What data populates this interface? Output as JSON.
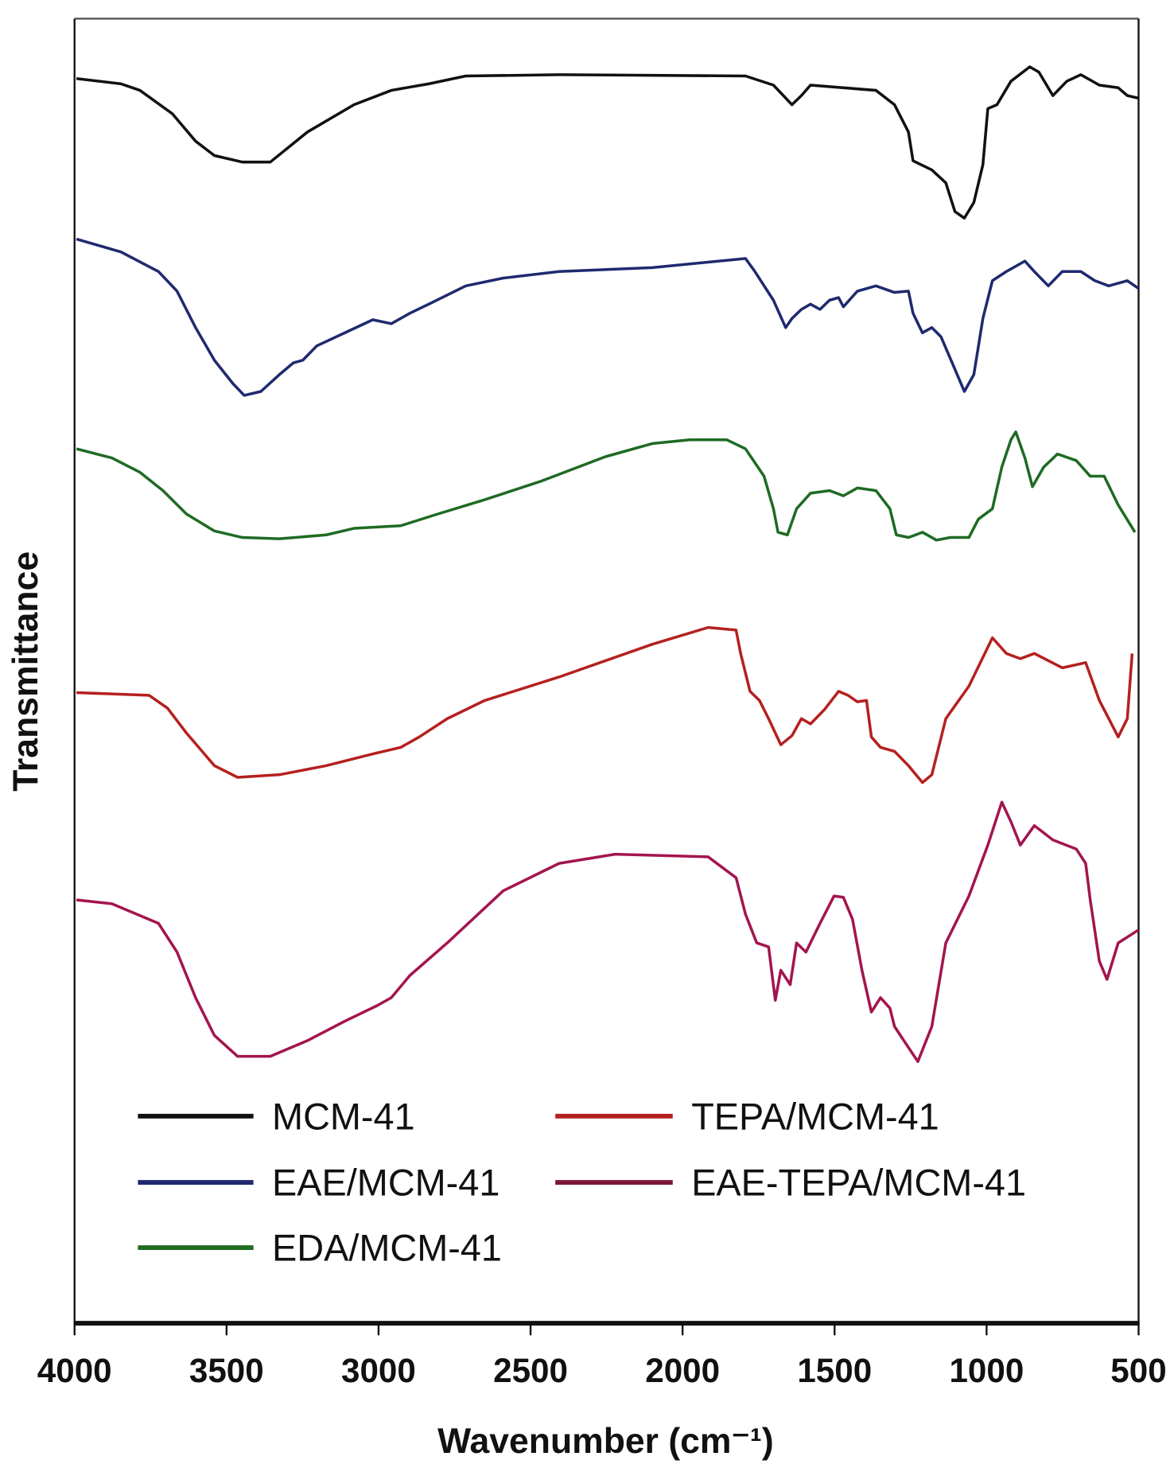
{
  "chart_data": {
    "type": "line",
    "title": "",
    "xlabel": "Wavenumber (cm⁻¹)",
    "ylabel": "Transmittance",
    "xlim": [
      4000,
      500
    ],
    "ylim": [
      0,
      100
    ],
    "y_units": "arbitrary (stacked, offset)",
    "xticks": [
      "4000",
      "3500",
      "3000",
      "2500",
      "2000",
      "1500",
      "1000",
      "500"
    ],
    "grid": false,
    "legend_position": "bottom-left",
    "series": [
      {
        "name": "MCM-41",
        "color": "#111111",
        "points": [
          [
            3994,
            95.4
          ],
          [
            3847,
            95
          ],
          [
            3785,
            94.5
          ],
          [
            3678,
            92.7
          ],
          [
            3602,
            90.6
          ],
          [
            3540,
            89.5
          ],
          [
            3448,
            89
          ],
          [
            3356,
            89
          ],
          [
            3234,
            91.3
          ],
          [
            3081,
            93.4
          ],
          [
            2958,
            94.5
          ],
          [
            2835,
            95
          ],
          [
            2713,
            95.6
          ],
          [
            2406,
            95.7
          ],
          [
            1793,
            95.6
          ],
          [
            1701,
            94.9
          ],
          [
            1640,
            93.4
          ],
          [
            1609,
            94.1
          ],
          [
            1579,
            94.9
          ],
          [
            1364,
            94.5
          ],
          [
            1303,
            93.4
          ],
          [
            1257,
            91.3
          ],
          [
            1242,
            89.1
          ],
          [
            1180,
            88.4
          ],
          [
            1134,
            87.4
          ],
          [
            1104,
            85.2
          ],
          [
            1073,
            84.7
          ],
          [
            1042,
            85.9
          ],
          [
            1012,
            88.8
          ],
          [
            996,
            93.1
          ],
          [
            966,
            93.4
          ],
          [
            920,
            95.2
          ],
          [
            858,
            96.3
          ],
          [
            828,
            95.9
          ],
          [
            782,
            94.1
          ],
          [
            736,
            95.2
          ],
          [
            690,
            95.7
          ],
          [
            629,
            94.9
          ],
          [
            567,
            94.7
          ],
          [
            537,
            94.1
          ],
          [
            500,
            93.9
          ]
        ]
      },
      {
        "name": "EAE/MCM-41",
        "color": "#1f2a6e",
        "points": [
          [
            3994,
            83.1
          ],
          [
            3847,
            82.1
          ],
          [
            3724,
            80.6
          ],
          [
            3663,
            79.1
          ],
          [
            3602,
            76.3
          ],
          [
            3540,
            73.8
          ],
          [
            3479,
            72
          ],
          [
            3442,
            71.1
          ],
          [
            3387,
            71.4
          ],
          [
            3326,
            72.7
          ],
          [
            3280,
            73.6
          ],
          [
            3249,
            73.8
          ],
          [
            3203,
            74.9
          ],
          [
            3111,
            75.9
          ],
          [
            3019,
            76.9
          ],
          [
            2958,
            76.6
          ],
          [
            2897,
            77.4
          ],
          [
            2835,
            78.1
          ],
          [
            2713,
            79.5
          ],
          [
            2590,
            80.1
          ],
          [
            2406,
            80.6
          ],
          [
            2100,
            80.9
          ],
          [
            1793,
            81.6
          ],
          [
            1762,
            80.6
          ],
          [
            1701,
            78.4
          ],
          [
            1661,
            76.3
          ],
          [
            1640,
            77
          ],
          [
            1609,
            77.7
          ],
          [
            1579,
            78.1
          ],
          [
            1548,
            77.7
          ],
          [
            1517,
            78.4
          ],
          [
            1487,
            78.6
          ],
          [
            1471,
            77.9
          ],
          [
            1425,
            79.1
          ],
          [
            1364,
            79.5
          ],
          [
            1303,
            79
          ],
          [
            1257,
            79.1
          ],
          [
            1242,
            77.4
          ],
          [
            1211,
            75.9
          ],
          [
            1180,
            76.3
          ],
          [
            1150,
            75.6
          ],
          [
            1104,
            73.1
          ],
          [
            1073,
            71.4
          ],
          [
            1042,
            72.7
          ],
          [
            1012,
            77
          ],
          [
            981,
            79.9
          ],
          [
            935,
            80.6
          ],
          [
            874,
            81.4
          ],
          [
            843,
            80.6
          ],
          [
            797,
            79.5
          ],
          [
            751,
            80.6
          ],
          [
            690,
            80.6
          ],
          [
            644,
            79.9
          ],
          [
            598,
            79.5
          ],
          [
            537,
            79.9
          ],
          [
            500,
            79.3
          ]
        ]
      },
      {
        "name": "EDA/MCM-41",
        "color": "#1e6b23",
        "points": [
          [
            3994,
            67
          ],
          [
            3877,
            66.3
          ],
          [
            3785,
            65.2
          ],
          [
            3709,
            63.8
          ],
          [
            3632,
            62
          ],
          [
            3540,
            60.7
          ],
          [
            3448,
            60.2
          ],
          [
            3326,
            60.1
          ],
          [
            3172,
            60.4
          ],
          [
            3081,
            60.9
          ],
          [
            2927,
            61.1
          ],
          [
            2805,
            62
          ],
          [
            2651,
            63.1
          ],
          [
            2468,
            64.5
          ],
          [
            2253,
            66.4
          ],
          [
            2100,
            67.4
          ],
          [
            1977,
            67.7
          ],
          [
            1855,
            67.7
          ],
          [
            1793,
            67
          ],
          [
            1732,
            64.9
          ],
          [
            1701,
            62.4
          ],
          [
            1686,
            60.6
          ],
          [
            1655,
            60.4
          ],
          [
            1625,
            62.4
          ],
          [
            1579,
            63.6
          ],
          [
            1517,
            63.8
          ],
          [
            1471,
            63.4
          ],
          [
            1425,
            64
          ],
          [
            1364,
            63.8
          ],
          [
            1318,
            62.4
          ],
          [
            1297,
            60.4
          ],
          [
            1257,
            60.2
          ],
          [
            1211,
            60.6
          ],
          [
            1165,
            60
          ],
          [
            1119,
            60.2
          ],
          [
            1058,
            60.2
          ],
          [
            1027,
            61.6
          ],
          [
            981,
            62.4
          ],
          [
            950,
            65.6
          ],
          [
            920,
            67.7
          ],
          [
            904,
            68.3
          ],
          [
            874,
            66.3
          ],
          [
            849,
            64.1
          ],
          [
            812,
            65.6
          ],
          [
            767,
            66.6
          ],
          [
            705,
            66.1
          ],
          [
            659,
            64.9
          ],
          [
            613,
            64.9
          ],
          [
            567,
            62.7
          ],
          [
            512,
            60.6
          ]
        ]
      },
      {
        "name": "TEPA/MCM-41",
        "color": "#b52020",
        "points": [
          [
            3994,
            48.3
          ],
          [
            3755,
            48.1
          ],
          [
            3694,
            47.1
          ],
          [
            3632,
            45.2
          ],
          [
            3540,
            42.7
          ],
          [
            3464,
            41.8
          ],
          [
            3326,
            42
          ],
          [
            3172,
            42.7
          ],
          [
            3019,
            43.6
          ],
          [
            2927,
            44.1
          ],
          [
            2866,
            44.9
          ],
          [
            2774,
            46.3
          ],
          [
            2651,
            47.7
          ],
          [
            2406,
            49.5
          ],
          [
            2100,
            52
          ],
          [
            1916,
            53.3
          ],
          [
            1824,
            53.1
          ],
          [
            1809,
            51.3
          ],
          [
            1778,
            48.4
          ],
          [
            1747,
            47.7
          ],
          [
            1717,
            46.3
          ],
          [
            1677,
            44.3
          ],
          [
            1640,
            45
          ],
          [
            1609,
            46.3
          ],
          [
            1579,
            45.9
          ],
          [
            1533,
            47
          ],
          [
            1487,
            48.4
          ],
          [
            1456,
            48.1
          ],
          [
            1425,
            47.6
          ],
          [
            1395,
            47.7
          ],
          [
            1379,
            44.9
          ],
          [
            1349,
            44.1
          ],
          [
            1303,
            43.8
          ],
          [
            1257,
            42.7
          ],
          [
            1211,
            41.4
          ],
          [
            1180,
            42
          ],
          [
            1134,
            46.3
          ],
          [
            1058,
            48.8
          ],
          [
            981,
            52.5
          ],
          [
            935,
            51.3
          ],
          [
            889,
            50.9
          ],
          [
            843,
            51.3
          ],
          [
            751,
            50.2
          ],
          [
            674,
            50.6
          ],
          [
            629,
            47.7
          ],
          [
            598,
            46.3
          ],
          [
            567,
            44.9
          ],
          [
            537,
            46.3
          ],
          [
            521,
            51.3
          ]
        ]
      },
      {
        "name": "EAE-TEPA/MCM-41",
        "color": "#a3154f",
        "points": [
          [
            3994,
            32.4
          ],
          [
            3877,
            32.1
          ],
          [
            3724,
            30.6
          ],
          [
            3663,
            28.4
          ],
          [
            3602,
            24.9
          ],
          [
            3540,
            22
          ],
          [
            3464,
            20.4
          ],
          [
            3356,
            20.4
          ],
          [
            3234,
            21.6
          ],
          [
            3111,
            23.1
          ],
          [
            3004,
            24.3
          ],
          [
            2958,
            24.9
          ],
          [
            2897,
            26.6
          ],
          [
            2774,
            29.1
          ],
          [
            2590,
            33.1
          ],
          [
            2406,
            35.2
          ],
          [
            2222,
            35.9
          ],
          [
            1916,
            35.7
          ],
          [
            1824,
            34.1
          ],
          [
            1793,
            31.3
          ],
          [
            1756,
            29.1
          ],
          [
            1717,
            28.8
          ],
          [
            1695,
            24.7
          ],
          [
            1677,
            27
          ],
          [
            1646,
            25.9
          ],
          [
            1625,
            29.1
          ],
          [
            1594,
            28.4
          ],
          [
            1548,
            30.6
          ],
          [
            1502,
            32.7
          ],
          [
            1471,
            32.6
          ],
          [
            1441,
            30.9
          ],
          [
            1410,
            27
          ],
          [
            1379,
            23.8
          ],
          [
            1349,
            24.9
          ],
          [
            1318,
            24.1
          ],
          [
            1303,
            22.7
          ],
          [
            1272,
            21.6
          ],
          [
            1226,
            20
          ],
          [
            1180,
            22.7
          ],
          [
            1134,
            29.1
          ],
          [
            1058,
            32.7
          ],
          [
            996,
            36.6
          ],
          [
            950,
            39.9
          ],
          [
            920,
            38.4
          ],
          [
            889,
            36.6
          ],
          [
            843,
            38.1
          ],
          [
            782,
            37
          ],
          [
            705,
            36.3
          ],
          [
            674,
            35.2
          ],
          [
            659,
            32.4
          ],
          [
            629,
            27.7
          ],
          [
            604,
            26.3
          ],
          [
            567,
            29.1
          ],
          [
            500,
            30.1
          ]
        ]
      }
    ]
  },
  "legend": {
    "items": [
      "MCM-41",
      "EAE/MCM-41",
      "EDA/MCM-41",
      "TEPA/MCM-41",
      "EAE-TEPA/MCM-41"
    ]
  }
}
